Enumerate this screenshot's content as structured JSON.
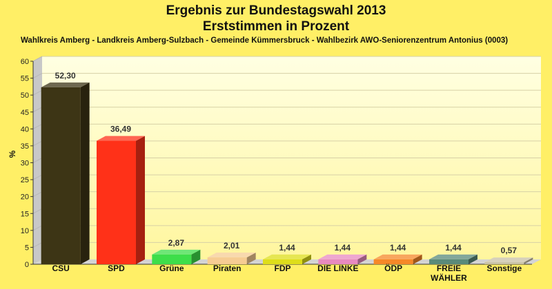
{
  "chart_data": {
    "type": "bar",
    "title_line1": "Ergebnis zur Bundestagswahl 2013",
    "title_line2": "Erststimmen in Prozent",
    "subtitle": "Wahlkreis Amberg - Landkreis Amberg-Sulzbach - Gemeinde Kümmersbruck - Wahlbezirk AWO-Seniorenzentrum Antonius (0003)",
    "ylabel": "%",
    "ylim": [
      0,
      60
    ],
    "yticks": [
      "0",
      "5",
      "10",
      "15",
      "20",
      "25",
      "30",
      "35",
      "40",
      "45",
      "50",
      "55",
      "60"
    ],
    "grid": true,
    "categories": [
      "CSU",
      "SPD",
      "Grüne",
      "Piraten",
      "FDP",
      "DIE LINKE",
      "ÖDP",
      "FREIE WÄHLER",
      "Sonstige"
    ],
    "values": [
      52.3,
      36.49,
      2.87,
      2.01,
      1.44,
      1.44,
      1.44,
      1.44,
      0.57
    ],
    "value_labels": [
      "52,30",
      "36,49",
      "2,87",
      "2,01",
      "1,44",
      "1,44",
      "1,44",
      "1,44",
      "0,57"
    ],
    "colors": [
      "#3d3515",
      "#ff3118",
      "#3dde4a",
      "#f6cc93",
      "#dede1a",
      "#e88ac0",
      "#f68828",
      "#5a8a7a",
      "#c9c2a6"
    ]
  }
}
